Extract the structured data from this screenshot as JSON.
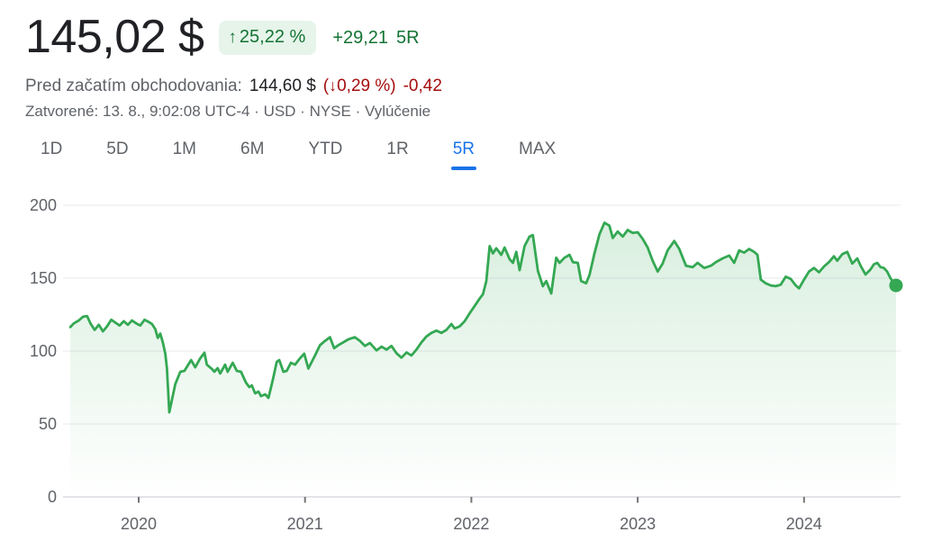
{
  "header": {
    "price": "145,02 $",
    "badge": {
      "arrow_icon": "↑",
      "change_percent": "25,22 %"
    },
    "change_abs": "+29,21",
    "change_period": "5R",
    "premarket": {
      "label": "Pred začatím obchodovania:",
      "price": "144,60 $",
      "paren_open": "(",
      "arrow_icon": "↓",
      "change_percent": "0,29 %",
      "paren_close": ")",
      "change_abs": "-0,42"
    },
    "meta_prefix": "Zatvorené: 13. 8., 9:02:08 UTC-4 · USD · NYSE · ",
    "disclaimer_label": "Vylúčenie"
  },
  "tabs": [
    {
      "label": "1D",
      "active": false
    },
    {
      "label": "5D",
      "active": false
    },
    {
      "label": "1M",
      "active": false
    },
    {
      "label": "6M",
      "active": false
    },
    {
      "label": "YTD",
      "active": false
    },
    {
      "label": "1R",
      "active": false
    },
    {
      "label": "5R",
      "active": true
    },
    {
      "label": "MAX",
      "active": false
    }
  ],
  "colors": {
    "accent_blue": "#1a73e8",
    "line_green": "#34a853",
    "text_green": "#137333",
    "badge_bg_green": "#e6f4ea",
    "text_red": "#a50e0e",
    "text_primary": "#202124",
    "text_secondary": "#5f6368",
    "gridline": "#e8eaed",
    "axis_line": "#dadce0",
    "tick_mark": "#757575",
    "fill_top": "rgba(52,168,83,0.20)",
    "fill_bottom": "rgba(52,168,83,0.0)"
  },
  "chart_data": {
    "type": "area",
    "title": "Stock price, 5 year range (5R)",
    "xlabel": "",
    "ylabel": "",
    "x_unit": "year",
    "xlim": [
      2019.57,
      2024.6
    ],
    "ylim": [
      0,
      200
    ],
    "x_ticks": [
      2020,
      2021,
      2022,
      2023,
      2024
    ],
    "y_ticks": [
      0,
      50,
      100,
      150,
      200
    ],
    "grid": true,
    "legend": false,
    "end_value": 145.02,
    "series": [
      {
        "name": "price",
        "points": [
          [
            2019.589,
            116.5
          ],
          [
            2019.61,
            119
          ],
          [
            2019.64,
            121
          ],
          [
            2019.665,
            123.5
          ],
          [
            2019.69,
            124
          ],
          [
            2019.71,
            119
          ],
          [
            2019.735,
            114.5
          ],
          [
            2019.76,
            118
          ],
          [
            2019.785,
            113.5
          ],
          [
            2019.81,
            117
          ],
          [
            2019.835,
            121.5
          ],
          [
            2019.86,
            119.5
          ],
          [
            2019.885,
            117.5
          ],
          [
            2019.91,
            120.5
          ],
          [
            2019.935,
            118
          ],
          [
            2019.96,
            121
          ],
          [
            2019.985,
            119
          ],
          [
            2020.01,
            117.5
          ],
          [
            2020.035,
            121.5
          ],
          [
            2020.06,
            120
          ],
          [
            2020.08,
            118.5
          ],
          [
            2020.1,
            115
          ],
          [
            2020.115,
            109
          ],
          [
            2020.13,
            112
          ],
          [
            2020.145,
            106
          ],
          [
            2020.16,
            98
          ],
          [
            2020.17,
            88
          ],
          [
            2020.184,
            58
          ],
          [
            2020.22,
            77.2
          ],
          [
            2020.25,
            85.8
          ],
          [
            2020.275,
            86.4
          ],
          [
            2020.315,
            93.8
          ],
          [
            2020.34,
            88.9
          ],
          [
            2020.37,
            95
          ],
          [
            2020.395,
            98.8
          ],
          [
            2020.41,
            90.7
          ],
          [
            2020.44,
            87.7
          ],
          [
            2020.455,
            85.8
          ],
          [
            2020.475,
            88.3
          ],
          [
            2020.49,
            84.6
          ],
          [
            2020.52,
            90.7
          ],
          [
            2020.535,
            85.8
          ],
          [
            2020.565,
            92
          ],
          [
            2020.59,
            86.4
          ],
          [
            2020.615,
            85.8
          ],
          [
            2020.645,
            78.4
          ],
          [
            2020.665,
            75.3
          ],
          [
            2020.68,
            76.5
          ],
          [
            2020.7,
            71
          ],
          [
            2020.72,
            72.2
          ],
          [
            2020.735,
            69.1
          ],
          [
            2020.76,
            70.4
          ],
          [
            2020.78,
            67.9
          ],
          [
            2020.805,
            79.6
          ],
          [
            2020.83,
            92.6
          ],
          [
            2020.845,
            93.8
          ],
          [
            2020.87,
            85.8
          ],
          [
            2020.89,
            86.4
          ],
          [
            2020.915,
            92
          ],
          [
            2020.94,
            90.7
          ],
          [
            2020.97,
            95.1
          ],
          [
            2020.995,
            98.2
          ],
          [
            2021.02,
            88
          ],
          [
            2021.06,
            97
          ],
          [
            2021.09,
            104
          ],
          [
            2021.12,
            107
          ],
          [
            2021.15,
            109.5
          ],
          [
            2021.175,
            102
          ],
          [
            2021.2,
            104
          ],
          [
            2021.23,
            106
          ],
          [
            2021.26,
            108
          ],
          [
            2021.3,
            109.5
          ],
          [
            2021.33,
            107
          ],
          [
            2021.36,
            103.5
          ],
          [
            2021.39,
            105.5
          ],
          [
            2021.43,
            100.5
          ],
          [
            2021.46,
            103
          ],
          [
            2021.49,
            101
          ],
          [
            2021.52,
            103.5
          ],
          [
            2021.55,
            98.5
          ],
          [
            2021.58,
            95.5
          ],
          [
            2021.61,
            99
          ],
          [
            2021.64,
            97
          ],
          [
            2021.67,
            101
          ],
          [
            2021.7,
            106
          ],
          [
            2021.73,
            110
          ],
          [
            2021.76,
            112.5
          ],
          [
            2021.79,
            114
          ],
          [
            2021.82,
            112.5
          ],
          [
            2021.85,
            114.5
          ],
          [
            2021.88,
            118.5
          ],
          [
            2021.9,
            115.5
          ],
          [
            2021.93,
            117
          ],
          [
            2021.96,
            120.5
          ],
          [
            2021.99,
            126
          ],
          [
            2022.02,
            131
          ],
          [
            2022.05,
            136
          ],
          [
            2022.07,
            139
          ],
          [
            2022.09,
            148
          ],
          [
            2022.11,
            172
          ],
          [
            2022.13,
            167
          ],
          [
            2022.15,
            170.5
          ],
          [
            2022.18,
            166
          ],
          [
            2022.2,
            171
          ],
          [
            2022.23,
            163
          ],
          [
            2022.25,
            160.5
          ],
          [
            2022.27,
            168
          ],
          [
            2022.29,
            155.5
          ],
          [
            2022.32,
            172
          ],
          [
            2022.35,
            178.5
          ],
          [
            2022.37,
            179.5
          ],
          [
            2022.4,
            155
          ],
          [
            2022.43,
            144.5
          ],
          [
            2022.45,
            148
          ],
          [
            2022.48,
            139.5
          ],
          [
            2022.51,
            164
          ],
          [
            2022.53,
            160.5
          ],
          [
            2022.56,
            164
          ],
          [
            2022.59,
            166
          ],
          [
            2022.61,
            161
          ],
          [
            2022.64,
            160.5
          ],
          [
            2022.66,
            148
          ],
          [
            2022.69,
            146.5
          ],
          [
            2022.71,
            152
          ],
          [
            2022.74,
            167
          ],
          [
            2022.77,
            180
          ],
          [
            2022.8,
            188
          ],
          [
            2022.83,
            186
          ],
          [
            2022.85,
            177.5
          ],
          [
            2022.88,
            182
          ],
          [
            2022.91,
            178.5
          ],
          [
            2022.94,
            183
          ],
          [
            2022.97,
            181
          ],
          [
            2023.0,
            181.5
          ],
          [
            2023.03,
            177
          ],
          [
            2023.06,
            171
          ],
          [
            2023.09,
            162
          ],
          [
            2023.12,
            154.5
          ],
          [
            2023.15,
            160
          ],
          [
            2023.18,
            169
          ],
          [
            2023.22,
            175.5
          ],
          [
            2023.25,
            170
          ],
          [
            2023.29,
            158.5
          ],
          [
            2023.33,
            157.5
          ],
          [
            2023.36,
            160.5
          ],
          [
            2023.4,
            157
          ],
          [
            2023.44,
            158.5
          ],
          [
            2023.47,
            161
          ],
          [
            2023.51,
            163.5
          ],
          [
            2023.55,
            165.5
          ],
          [
            2023.58,
            160.5
          ],
          [
            2023.61,
            169
          ],
          [
            2023.64,
            167.5
          ],
          [
            2023.67,
            170
          ],
          [
            2023.7,
            168
          ],
          [
            2023.72,
            166
          ],
          [
            2023.74,
            149
          ],
          [
            2023.77,
            146.5
          ],
          [
            2023.8,
            145
          ],
          [
            2023.83,
            144.5
          ],
          [
            2023.86,
            145.5
          ],
          [
            2023.89,
            151
          ],
          [
            2023.92,
            149.5
          ],
          [
            2023.95,
            145
          ],
          [
            2023.97,
            143
          ],
          [
            2024.0,
            149
          ],
          [
            2024.03,
            154.5
          ],
          [
            2024.06,
            157
          ],
          [
            2024.09,
            154
          ],
          [
            2024.12,
            158
          ],
          [
            2024.15,
            161
          ],
          [
            2024.18,
            165
          ],
          [
            2024.2,
            162
          ],
          [
            2024.23,
            166.5
          ],
          [
            2024.26,
            168
          ],
          [
            2024.29,
            160
          ],
          [
            2024.32,
            163.5
          ],
          [
            2024.34,
            158.5
          ],
          [
            2024.37,
            152.5
          ],
          [
            2024.4,
            156
          ],
          [
            2024.42,
            159.5
          ],
          [
            2024.44,
            160.5
          ],
          [
            2024.46,
            157.5
          ],
          [
            2024.48,
            157
          ],
          [
            2024.5,
            154.5
          ],
          [
            2024.52,
            150
          ],
          [
            2024.54,
            146.5
          ],
          [
            2024.553,
            145.02
          ]
        ]
      }
    ]
  }
}
